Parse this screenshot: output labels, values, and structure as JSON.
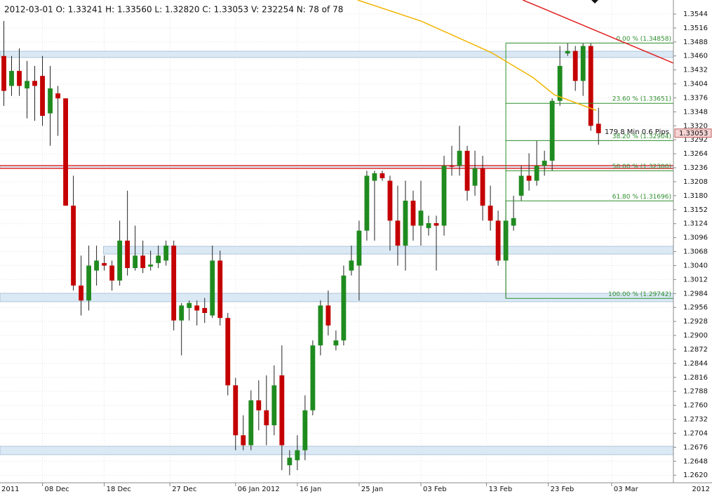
{
  "chart_data": {
    "type": "candlestick",
    "header": "2012-03-01   O: 1.33241   H: 1.33560   L: 1.32820   C: 1.33053   V: 232254   N: 78 of 78",
    "year_start": "2011",
    "year_end": "2012",
    "up_color": "#1f8b1f",
    "down_color": "#c40000",
    "grid": true,
    "ylim": [
      1.26048,
      1.35721
    ],
    "xlim": [
      -0.5,
      86.7
    ],
    "yticks": [
      {
        "value": 1.262,
        "label": "1.2620"
      },
      1.2648,
      1.2676,
      1.2704,
      1.2732,
      {
        "value": 1.276,
        "label": "1.2760"
      },
      1.2788,
      1.2816,
      1.2844,
      1.2872,
      {
        "value": 1.29,
        "label": "1.2900"
      },
      1.2928,
      1.2956,
      1.2984,
      1.3012,
      {
        "value": 1.304,
        "label": "1.3040"
      },
      1.3068,
      1.3096,
      1.3124,
      1.3152,
      {
        "value": 1.318,
        "label": "1.3180"
      },
      1.3208,
      1.3236,
      1.3264,
      1.3292,
      {
        "value": 1.332,
        "label": "1.3320"
      },
      1.3348,
      1.3376,
      1.3404,
      1.3432,
      {
        "value": 1.346,
        "label": "1.3460"
      },
      1.3488,
      1.3516,
      1.3544
    ],
    "xticks": [
      {
        "value": 5,
        "label": "08 Dec"
      },
      {
        "value": 13,
        "label": "18 Dec"
      },
      {
        "value": 21.5,
        "label": "27 Dec"
      },
      {
        "value": 30,
        "label": "06 Jan 2012"
      },
      {
        "value": 38,
        "label": "16 Jan"
      },
      {
        "value": 46,
        "label": "25 Jan"
      },
      {
        "value": 54,
        "label": "03 Feb"
      },
      {
        "value": 62.5,
        "label": "13 Feb"
      },
      {
        "value": 70.5,
        "label": "23 Feb"
      },
      {
        "value": 78.7,
        "label": "03 Mar"
      }
    ],
    "open": [
      1.346,
      1.34,
      1.343,
      1.3395,
      1.341,
      1.342,
      1.3345,
      1.3385,
      1.3375,
      1.316,
      1.3,
      1.297,
      1.303,
      1.3045,
      1.304,
      1.301,
      1.309,
      1.3035,
      1.306,
      1.3038,
      1.3045,
      1.305,
      1.308,
      1.293,
      1.2955,
      1.296,
      1.2955,
      1.294,
      1.305,
      1.2935,
      1.28,
      1.27,
      1.268,
      1.277,
      1.275,
      1.272,
      1.282,
      1.264,
      1.265,
      1.267,
      1.275,
      1.288,
      1.296,
      1.288,
      1.289,
      1.303,
      1.304,
      1.311,
      1.321,
      1.3225,
      1.321,
      1.313,
      1.308,
      1.317,
      1.312,
      1.3115,
      1.3125,
      1.312,
      1.324,
      1.324,
      1.327,
      1.32,
      1.3235,
      1.316,
      1.313,
      1.305,
      1.312,
      1.318,
      1.322,
      1.321,
      1.324,
      1.325,
      1.337,
      1.3465,
      1.347,
      1.341,
      1.348,
      1.33241
    ],
    "high": [
      1.353,
      1.346,
      1.3475,
      1.345,
      1.344,
      1.346,
      1.344,
      1.34,
      1.3375,
      1.322,
      1.306,
      1.308,
      1.308,
      1.306,
      1.305,
      1.313,
      1.319,
      1.312,
      1.309,
      1.307,
      1.308,
      1.309,
      1.309,
      1.2965,
      1.297,
      1.297,
      1.2975,
      1.308,
      1.307,
      1.2945,
      1.2815,
      1.274,
      1.279,
      1.281,
      1.282,
      1.284,
      1.288,
      1.267,
      1.27,
      1.278,
      1.289,
      1.297,
      1.299,
      1.291,
      1.304,
      1.308,
      1.313,
      1.323,
      1.323,
      1.323,
      1.322,
      1.32,
      1.321,
      1.319,
      1.321,
      1.314,
      1.314,
      1.326,
      1.328,
      1.332,
      1.328,
      1.327,
      1.326,
      1.32,
      1.315,
      1.317,
      1.318,
      1.324,
      1.3265,
      1.329,
      1.327,
      1.3375,
      1.348,
      1.3485,
      1.348,
      1.3485,
      1.3486,
      1.3356
    ],
    "low": [
      1.336,
      1.338,
      1.338,
      1.3335,
      1.333,
      1.332,
      1.328,
      1.33,
      1.316,
      1.299,
      1.294,
      1.295,
      1.3,
      1.303,
      1.299,
      1.3,
      1.302,
      1.303,
      1.3025,
      1.303,
      1.3035,
      1.304,
      1.291,
      1.286,
      1.293,
      1.292,
      1.2925,
      1.2935,
      1.292,
      1.278,
      1.267,
      1.267,
      1.267,
      1.271,
      1.268,
      1.27,
      1.263,
      1.262,
      1.263,
      1.265,
      1.274,
      1.286,
      1.29,
      1.287,
      1.288,
      1.302,
      1.297,
      1.309,
      1.309,
      1.321,
      1.307,
      1.304,
      1.303,
      1.309,
      1.308,
      1.31,
      1.303,
      1.31,
      1.322,
      1.322,
      1.317,
      1.318,
      1.313,
      1.311,
      1.304,
      1.2974,
      1.311,
      1.317,
      1.319,
      1.32,
      1.322,
      1.323,
      1.336,
      1.346,
      1.339,
      1.338,
      1.331,
      1.3282
    ],
    "close": [
      1.339,
      1.343,
      1.34,
      1.341,
      1.34,
      1.334,
      1.3395,
      1.3375,
      1.316,
      1.3,
      1.297,
      1.304,
      1.305,
      1.304,
      1.301,
      1.309,
      1.3035,
      1.306,
      1.3035,
      1.3042,
      1.306,
      1.308,
      1.293,
      1.296,
      1.2965,
      1.295,
      1.2945,
      1.305,
      1.2935,
      1.28,
      1.27,
      1.268,
      1.277,
      1.275,
      1.272,
      1.28,
      1.268,
      1.2655,
      1.267,
      1.275,
      1.288,
      1.296,
      1.292,
      1.289,
      1.302,
      1.305,
      1.311,
      1.322,
      1.3225,
      1.3215,
      1.313,
      1.308,
      1.317,
      1.312,
      1.315,
      1.3125,
      1.312,
      1.324,
      1.3238,
      1.327,
      1.319,
      1.3235,
      1.316,
      1.313,
      1.305,
      1.313,
      1.3135,
      1.322,
      1.321,
      1.324,
      1.325,
      1.337,
      1.344,
      1.347,
      1.341,
      1.348,
      1.332,
      1.33053
    ],
    "zones": [
      {
        "from": 1.34568,
        "to": 1.34695,
        "start": -0.5
      },
      {
        "from": 1.32347,
        "to": 1.32403,
        "start": -0.5
      },
      {
        "from": 1.30631,
        "to": 1.30786,
        "start": 12.9
      },
      {
        "from": 1.29676,
        "to": 1.29844,
        "start": -0.5
      },
      {
        "from": 1.26611,
        "to": 1.26779,
        "start": -0.5
      }
    ],
    "zone_color": "#dbe9f5",
    "red_lines": [
      1.32403,
      1.32347
    ],
    "fib_start": 65,
    "fibs": [
      {
        "value": 1.34858,
        "label": "0.00 % (1.34858)"
      },
      {
        "value": 1.33651,
        "label": "23.60 % (1.33651)"
      },
      {
        "value": 1.32904,
        "label": "38.20 % (1.32904)"
      },
      {
        "value": 1.323,
        "label": "50.00 % (1.32300)"
      },
      {
        "value": 1.31696,
        "label": "61.80 % (1.31696)"
      },
      {
        "value": 1.29742,
        "label": "100.00 % (1.29742)"
      }
    ],
    "ma": {
      "color": "#f0b400",
      "x": [
        45.8,
        54,
        63.1,
        68.5,
        71.3,
        76.7
      ],
      "values": [
        1.35721,
        1.353,
        1.3467,
        1.3417,
        1.3382,
        1.3351
      ]
    },
    "trendline": {
      "color": "#e02020",
      "x": [
        67.2,
        86.7
      ],
      "values": [
        1.35721,
        1.34456
      ]
    },
    "measure": "179.8 Min 0.6 Pips",
    "last_price": {
      "value": 1.33053,
      "label": "1.33053"
    }
  }
}
